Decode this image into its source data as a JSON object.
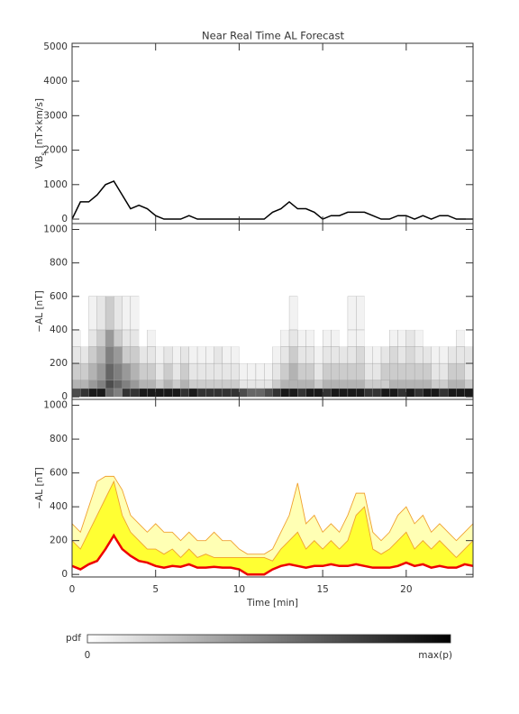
{
  "chart_data": [
    {
      "type": "line",
      "title": "Near Real Time AL Forecast",
      "ylabel_main": "VB",
      "ylabel_sub": "s",
      "ylabel_unit": "[nT×km/s]",
      "x": [
        0,
        0.5,
        1,
        1.5,
        2,
        2.5,
        3,
        3.5,
        4,
        4.5,
        5,
        5.5,
        6,
        6.5,
        7,
        7.5,
        8,
        8.5,
        9,
        9.5,
        10,
        10.5,
        11,
        11.5,
        12,
        12.5,
        13,
        13.5,
        14,
        14.5,
        15,
        15.5,
        16,
        16.5,
        17,
        17.5,
        18,
        18.5,
        19,
        19.5,
        20,
        20.5,
        21,
        21.5,
        22,
        22.5,
        23,
        23.5,
        24
      ],
      "values": [
        0,
        500,
        500,
        700,
        1000,
        1100,
        700,
        300,
        400,
        300,
        100,
        0,
        0,
        0,
        100,
        0,
        0,
        0,
        0,
        0,
        0,
        0,
        0,
        0,
        200,
        300,
        500,
        300,
        300,
        200,
        0,
        100,
        100,
        200,
        200,
        200,
        100,
        0,
        0,
        100,
        100,
        0,
        100,
        0,
        100,
        100,
        0,
        0,
        0
      ],
      "color": "#000000",
      "xlim": [
        0,
        24
      ],
      "xticks": [
        0,
        5,
        10,
        15,
        20
      ],
      "ylim": [
        -130,
        5100
      ],
      "yticks": [
        0,
        1000,
        2000,
        3000,
        4000,
        5000
      ]
    },
    {
      "type": "heatmap",
      "ylabel": "−AL [nT]",
      "x": [
        0,
        0.5,
        1,
        1.5,
        2,
        2.5,
        3,
        3.5,
        4,
        4.5,
        5,
        5.5,
        6,
        6.5,
        7,
        7.5,
        8,
        8.5,
        9,
        9.5,
        10,
        10.5,
        11,
        11.5,
        12,
        12.5,
        13,
        13.5,
        14,
        14.5,
        15,
        15.5,
        16,
        16.5,
        17,
        17.5,
        18,
        18.5,
        19,
        19.5,
        20,
        20.5,
        21,
        21.5,
        22,
        22.5,
        23,
        23.5,
        24
      ],
      "ybins": [
        0,
        50,
        100,
        200,
        300,
        400,
        600
      ],
      "z": [
        [
          0.7,
          0.8,
          0.9,
          0.9,
          0.6,
          0.5,
          0.8,
          0.8,
          0.9,
          0.9,
          0.9,
          0.9,
          0.9,
          0.8,
          0.9,
          0.8,
          0.8,
          0.8,
          0.8,
          0.8,
          0.7,
          0.6,
          0.6,
          0.7,
          0.8,
          0.9,
          0.9,
          0.8,
          0.9,
          0.9,
          0.8,
          0.9,
          0.9,
          0.9,
          0.9,
          0.8,
          0.8,
          0.9,
          0.9,
          0.8,
          0.9,
          0.8,
          0.9,
          0.9,
          0.8,
          0.9,
          0.9,
          0.9
        ],
        [
          0.3,
          0.3,
          0.4,
          0.5,
          0.7,
          0.6,
          0.5,
          0.4,
          0.3,
          0.3,
          0.2,
          0.3,
          0.2,
          0.3,
          0.2,
          0.2,
          0.2,
          0.2,
          0.2,
          0.2,
          0.1,
          0.1,
          0.1,
          0.1,
          0.2,
          0.3,
          0.3,
          0.3,
          0.3,
          0.2,
          0.3,
          0.3,
          0.3,
          0.3,
          0.3,
          0.2,
          0.2,
          0.2,
          0.3,
          0.3,
          0.3,
          0.3,
          0.3,
          0.2,
          0.2,
          0.3,
          0.3,
          0.2
        ],
        [
          0.2,
          0.2,
          0.3,
          0.4,
          0.6,
          0.5,
          0.4,
          0.3,
          0.2,
          0.2,
          0.1,
          0.2,
          0.1,
          0.2,
          0.1,
          0.1,
          0.1,
          0.1,
          0.1,
          0.1,
          0.05,
          0.05,
          0.05,
          0.05,
          0.1,
          0.2,
          0.3,
          0.2,
          0.2,
          0.1,
          0.2,
          0.2,
          0.2,
          0.2,
          0.2,
          0.1,
          0.1,
          0.2,
          0.2,
          0.2,
          0.2,
          0.2,
          0.2,
          0.1,
          0.1,
          0.2,
          0.2,
          0.1
        ],
        [
          0.1,
          0.1,
          0.2,
          0.3,
          0.5,
          0.4,
          0.2,
          0.2,
          0.1,
          0.1,
          0.05,
          0.1,
          0.05,
          0.1,
          0.05,
          0.05,
          0.05,
          0.1,
          0.05,
          0.05,
          0,
          0,
          0,
          0,
          0.05,
          0.1,
          0.2,
          0.1,
          0.1,
          0.05,
          0.1,
          0.1,
          0.1,
          0.1,
          0.15,
          0.05,
          0.05,
          0.1,
          0.15,
          0.1,
          0.15,
          0.1,
          0.1,
          0.05,
          0.05,
          0.1,
          0.1,
          0.1
        ],
        [
          0.05,
          0,
          0.1,
          0.2,
          0.4,
          0.2,
          0.1,
          0.1,
          0,
          0.05,
          0,
          0,
          0,
          0,
          0,
          0,
          0,
          0,
          0,
          0,
          0,
          0,
          0,
          0,
          0,
          0.05,
          0.1,
          0.05,
          0.05,
          0,
          0.05,
          0.05,
          0,
          0.05,
          0.05,
          0,
          0,
          0,
          0.05,
          0.05,
          0.1,
          0.05,
          0,
          0,
          0,
          0,
          0.05,
          0
        ],
        [
          0,
          0,
          0.05,
          0.1,
          0.2,
          0.1,
          0.05,
          0.05,
          0,
          0,
          0,
          0,
          0,
          0,
          0,
          0,
          0,
          0,
          0,
          0,
          0,
          0,
          0,
          0,
          0,
          0,
          0.05,
          0,
          0,
          0,
          0,
          0,
          0,
          0.05,
          0.05,
          0,
          0,
          0,
          0,
          0,
          0,
          0,
          0,
          0,
          0,
          0,
          0,
          0
        ]
      ],
      "colormap": "gray",
      "xlim": [
        0,
        24
      ],
      "xticks": [
        0,
        5,
        10,
        15,
        20
      ],
      "ylim": [
        -15,
        1035
      ],
      "yticks": [
        0,
        200,
        400,
        600,
        800,
        1000
      ]
    },
    {
      "type": "band",
      "ylabel": "−AL [nT]",
      "xlabel": "Time [min]",
      "x": [
        0,
        0.5,
        1,
        1.5,
        2,
        2.5,
        3,
        3.5,
        4,
        4.5,
        5,
        5.5,
        6,
        6.5,
        7,
        7.5,
        8,
        8.5,
        9,
        9.5,
        10,
        10.5,
        11,
        11.5,
        12,
        12.5,
        13,
        13.5,
        14,
        14.5,
        15,
        15.5,
        16,
        16.5,
        17,
        17.5,
        18,
        18.5,
        19,
        19.5,
        20,
        20.5,
        21,
        21.5,
        22,
        22.5,
        23,
        23.5,
        24
      ],
      "series": [
        {
          "color": "#f0a030",
          "fill": "#ffffb4",
          "values": [
            300,
            250,
            400,
            550,
            580,
            580,
            500,
            350,
            300,
            250,
            300,
            250,
            250,
            200,
            250,
            200,
            200,
            250,
            200,
            200,
            150,
            120,
            120,
            120,
            150,
            250,
            350,
            540,
            300,
            350,
            250,
            300,
            250,
            350,
            480,
            480,
            250,
            200,
            250,
            350,
            400,
            300,
            350,
            250,
            300,
            250,
            200,
            250,
            300
          ]
        },
        {
          "color": "#f0a030",
          "fill": "#ffff33",
          "values": [
            200,
            150,
            250,
            350,
            450,
            550,
            350,
            250,
            200,
            150,
            150,
            120,
            150,
            100,
            150,
            100,
            120,
            100,
            100,
            100,
            100,
            100,
            100,
            100,
            80,
            150,
            200,
            250,
            150,
            200,
            150,
            200,
            150,
            200,
            350,
            400,
            150,
            120,
            150,
            200,
            250,
            150,
            200,
            150,
            200,
            150,
            100,
            150,
            200
          ]
        },
        {
          "color": "#ee0000",
          "values": [
            50,
            30,
            60,
            80,
            150,
            230,
            150,
            110,
            80,
            70,
            50,
            40,
            50,
            45,
            60,
            40,
            40,
            45,
            40,
            40,
            30,
            0,
            0,
            0,
            30,
            50,
            60,
            50,
            40,
            50,
            50,
            60,
            50,
            50,
            60,
            50,
            40,
            40,
            40,
            50,
            70,
            50,
            60,
            40,
            50,
            40,
            40,
            60,
            50
          ]
        }
      ],
      "xlim": [
        0,
        24
      ],
      "xticks": [
        0,
        5,
        10,
        15,
        20
      ],
      "ylim": [
        -15,
        1035
      ],
      "yticks": [
        0,
        200,
        400,
        600,
        800,
        1000
      ]
    }
  ],
  "colorbar": {
    "label": "pdf",
    "min_label": "0",
    "max_label": "max(p)"
  }
}
